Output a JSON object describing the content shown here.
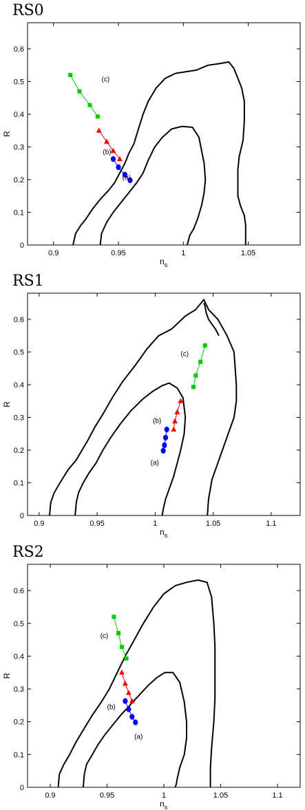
{
  "chart_data": [
    {
      "type": "line",
      "title": "RS0",
      "xlabel": "n",
      "xlabel_sub": "s",
      "ylabel": "R",
      "xlim": [
        0.88,
        1.09
      ],
      "ylim": [
        0,
        0.68
      ],
      "xticks": [
        0.9,
        0.95,
        1,
        1.05
      ],
      "xtick_labels": [
        "0.9",
        "0.95",
        "1",
        "1.05"
      ],
      "yticks": [
        0,
        0.1,
        0.2,
        0.3,
        0.4,
        0.5,
        0.6
      ],
      "ytick_labels": [
        "0",
        "0.1",
        "0.2",
        "0.3",
        "0.4",
        "0.5",
        "0.6"
      ],
      "contours": [
        {
          "x": [
            0.915,
            0.917,
            0.921,
            0.925,
            0.93,
            0.936,
            0.942,
            0.947,
            0.951,
            0.955,
            0.958,
            0.962,
            0.965,
            0.969,
            0.973,
            0.979,
            0.986,
            0.994,
            1.002,
            1.01,
            1.019,
            1.028,
            1.035,
            1.039,
            1.042,
            1.045,
            1.047,
            1.047,
            1.046,
            1.043,
            1.042,
            1.042,
            1.044,
            1.047,
            1.048,
            1.048,
            1.048
          ],
          "y": [
            0,
            0.035,
            0.06,
            0.08,
            0.11,
            0.14,
            0.165,
            0.19,
            0.22,
            0.25,
            0.28,
            0.31,
            0.35,
            0.4,
            0.44,
            0.48,
            0.51,
            0.525,
            0.53,
            0.535,
            0.55,
            0.555,
            0.56,
            0.54,
            0.51,
            0.48,
            0.44,
            0.38,
            0.32,
            0.27,
            0.23,
            0.15,
            0.12,
            0.09,
            0.06,
            0.03,
            0
          ]
        },
        {
          "x": [
            0.936,
            0.937,
            0.941,
            0.946,
            0.952,
            0.958,
            0.964,
            0.969,
            0.973,
            0.978,
            0.984,
            0.991,
            0.999,
            1.007,
            1.012,
            1.014,
            1.016,
            1.017,
            1.016,
            1.014,
            1.011,
            1.008,
            1.005,
            1.004,
            1.003
          ],
          "y": [
            0,
            0.035,
            0.07,
            0.1,
            0.13,
            0.16,
            0.19,
            0.22,
            0.26,
            0.3,
            0.33,
            0.355,
            0.363,
            0.36,
            0.33,
            0.29,
            0.25,
            0.2,
            0.16,
            0.12,
            0.08,
            0.05,
            0.03,
            0.015,
            0
          ]
        }
      ],
      "series": [
        {
          "name": "(a)",
          "color": "#0000ff",
          "marker": "circle",
          "x": [
            0.946,
            0.95,
            0.955,
            0.959
          ],
          "y": [
            0.263,
            0.238,
            0.215,
            0.198
          ],
          "label_pos": [
            0.953,
            0.2
          ]
        },
        {
          "name": "(b)",
          "color": "#ff0000",
          "marker": "triangle",
          "x": [
            0.935,
            0.941,
            0.946,
            0.951
          ],
          "y": [
            0.35,
            0.316,
            0.288,
            0.263
          ],
          "label_pos": [
            0.938,
            0.278
          ]
        },
        {
          "name": "(c)",
          "color": "#00cc00",
          "marker": "square",
          "x": [
            0.913,
            0.92,
            0.928,
            0.934
          ],
          "y": [
            0.52,
            0.47,
            0.428,
            0.393
          ],
          "label_pos": [
            0.937,
            0.5
          ]
        }
      ]
    },
    {
      "type": "line",
      "title": "RS1",
      "xlabel": "n",
      "xlabel_sub": "s",
      "ylabel": "R",
      "xlim": [
        0.89,
        1.125
      ],
      "ylim": [
        0,
        0.68
      ],
      "xticks": [
        0.9,
        0.95,
        1,
        1.05,
        1.1
      ],
      "xtick_labels": [
        "0.9",
        "0.95",
        "1",
        "1.05",
        "1.1"
      ],
      "yticks": [
        0,
        0.1,
        0.2,
        0.3,
        0.4,
        0.5,
        0.6
      ],
      "ytick_labels": [
        "0",
        "0.1",
        "0.2",
        "0.3",
        "0.4",
        "0.5",
        "0.6"
      ],
      "contours": [
        {
          "x": [
            0.909,
            0.91,
            0.913,
            0.918,
            0.925,
            0.932,
            0.937,
            0.942,
            0.948,
            0.955,
            0.963,
            0.972,
            0.983,
            0.993,
            1.003,
            1.014,
            1.026,
            1.035,
            1.042,
            1.046,
            1.054,
            1.062,
            1.068,
            1.069,
            1.07,
            1.07,
            1.068,
            1.062,
            1.056,
            1.049,
            1.046,
            1.045
          ],
          "y": [
            0,
            0.04,
            0.07,
            0.1,
            0.14,
            0.17,
            0.2,
            0.23,
            0.27,
            0.31,
            0.36,
            0.41,
            0.46,
            0.51,
            0.55,
            0.57,
            0.61,
            0.63,
            0.66,
            0.63,
            0.6,
            0.55,
            0.5,
            0.45,
            0.4,
            0.35,
            0.3,
            0.24,
            0.18,
            0.11,
            0.05,
            0
          ]
        },
        {
          "x": [
            0.931,
            0.932,
            0.934,
            0.938,
            0.943,
            0.949,
            0.955,
            0.962,
            0.97,
            0.979,
            0.989,
            0.998,
            1.006,
            1.012,
            1.019,
            1.024,
            1.026,
            1.025,
            1.022,
            1.019,
            1.016,
            1.012,
            1.009,
            1.007,
            1.006
          ],
          "y": [
            0,
            0.04,
            0.07,
            0.1,
            0.13,
            0.16,
            0.2,
            0.24,
            0.28,
            0.32,
            0.355,
            0.38,
            0.397,
            0.405,
            0.39,
            0.36,
            0.3,
            0.25,
            0.2,
            0.16,
            0.12,
            0.08,
            0.05,
            0.02,
            0
          ]
        },
        {
          "x": [
            1.042,
            1.043,
            1.044,
            1.046,
            1.048,
            1.052,
            1.055
          ],
          "y": [
            0.65,
            0.64,
            0.62,
            0.6,
            0.59,
            0.57,
            0.55
          ]
        }
      ],
      "series": [
        {
          "name": "(a)",
          "color": "#0000ff",
          "marker": "circle",
          "x": [
            1.01,
            1.009,
            1.008,
            1.007
          ],
          "y": [
            0.263,
            0.238,
            0.215,
            0.198
          ],
          "label_pos": [
            0.996,
            0.155
          ]
        },
        {
          "name": "(b)",
          "color": "#ff0000",
          "marker": "triangle",
          "x": [
            1.016,
            1.017,
            1.019,
            1.022
          ],
          "y": [
            0.263,
            0.288,
            0.316,
            0.35
          ],
          "label_pos": [
            0.998,
            0.283
          ]
        },
        {
          "name": "(c)",
          "color": "#00cc00",
          "marker": "square",
          "x": [
            1.033,
            1.035,
            1.039,
            1.043
          ],
          "y": [
            0.393,
            0.428,
            0.47,
            0.52
          ],
          "label_pos": [
            1.022,
            0.487
          ]
        }
      ]
    },
    {
      "type": "line",
      "title": "RS2",
      "xlabel": "n",
      "xlabel_sub": "s",
      "ylabel": "R",
      "xlim": [
        0.88,
        1.12
      ],
      "ylim": [
        0,
        0.68
      ],
      "xticks": [
        0.9,
        0.95,
        1,
        1.05,
        1.1
      ],
      "xtick_labels": [
        "0.9",
        "0.95",
        "1",
        "1.05",
        "1.1"
      ],
      "yticks": [
        0,
        0.1,
        0.2,
        0.3,
        0.4,
        0.5,
        0.6
      ],
      "ytick_labels": [
        "0",
        "0.1",
        "0.2",
        "0.3",
        "0.4",
        "0.5",
        "0.6"
      ],
      "contours": [
        {
          "x": [
            0.907,
            0.908,
            0.912,
            0.917,
            0.923,
            0.93,
            0.937,
            0.945,
            0.952,
            0.959,
            0.966,
            0.974,
            0.982,
            0.991,
            1.0,
            1.01,
            1.02,
            1.03,
            1.038,
            1.042,
            1.044,
            1.045,
            1.045,
            1.045,
            1.044,
            1.042,
            1.041,
            1.041,
            1.041
          ],
          "y": [
            0,
            0.04,
            0.07,
            0.1,
            0.14,
            0.18,
            0.22,
            0.26,
            0.3,
            0.35,
            0.4,
            0.45,
            0.5,
            0.55,
            0.59,
            0.615,
            0.625,
            0.632,
            0.625,
            0.58,
            0.5,
            0.43,
            0.35,
            0.27,
            0.2,
            0.12,
            0.06,
            0.02,
            0
          ]
        },
        {
          "x": [
            0.929,
            0.93,
            0.932,
            0.937,
            0.942,
            0.948,
            0.955,
            0.962,
            0.97,
            0.978,
            0.986,
            0.994,
            1.001,
            1.008,
            1.014,
            1.018,
            1.02,
            1.02,
            1.018,
            1.014,
            1.012,
            1.011,
            1.01
          ],
          "y": [
            0,
            0.04,
            0.07,
            0.1,
            0.13,
            0.16,
            0.19,
            0.22,
            0.25,
            0.28,
            0.31,
            0.335,
            0.35,
            0.35,
            0.32,
            0.26,
            0.2,
            0.15,
            0.1,
            0.06,
            0.03,
            0.01,
            0
          ]
        }
      ],
      "series": [
        {
          "name": "(a)",
          "color": "#0000ff",
          "marker": "circle",
          "x": [
            0.966,
            0.969,
            0.972,
            0.975
          ],
          "y": [
            0.263,
            0.238,
            0.215,
            0.198
          ],
          "label_pos": [
            0.974,
            0.148
          ]
        },
        {
          "name": "(b)",
          "color": "#ff0000",
          "marker": "triangle",
          "x": [
            0.963,
            0.966,
            0.969,
            0.972
          ],
          "y": [
            0.35,
            0.316,
            0.288,
            0.263
          ],
          "label_pos": [
            0.95,
            0.238
          ]
        },
        {
          "name": "(c)",
          "color": "#00cc00",
          "marker": "square",
          "x": [
            0.956,
            0.96,
            0.963,
            0.967
          ],
          "y": [
            0.52,
            0.47,
            0.428,
            0.393
          ],
          "label_pos": [
            0.944,
            0.455
          ]
        }
      ]
    }
  ]
}
